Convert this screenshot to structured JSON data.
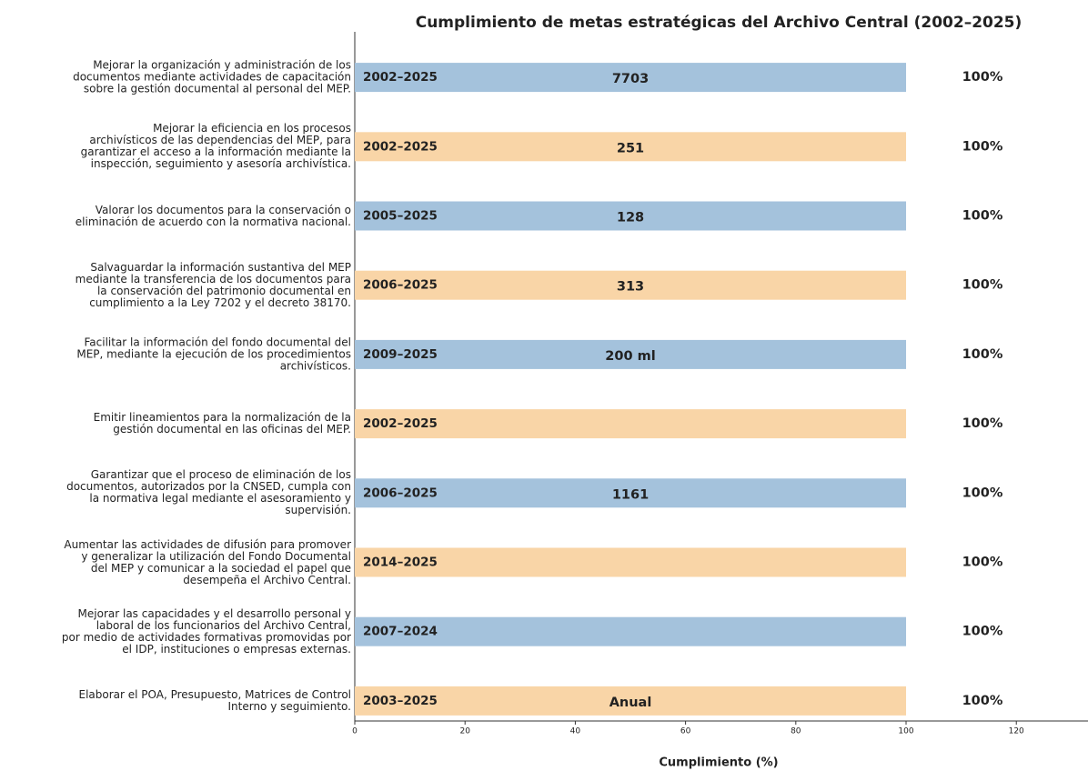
{
  "chart_data": {
    "type": "barh",
    "title": "Cumplimiento de metas estratégicas del Archivo Central (2002–2025)",
    "xlabel": "Cumplimiento (%)",
    "categories": [
      "Mejorar la organización y administración de los\ndocumentos mediante actividades de capacitación\nsobre la gestión documental al personal del MEP.",
      "Mejorar la eficiencia en los procesos\narchivísticos de las dependencias del MEP, para\ngarantizar el acceso a la información mediante la\ninspección, seguimiento y asesoría archivística.",
      "Valorar los documentos para la conservación o\neliminación de acuerdo con la normativa nacional.",
      "Salvaguardar la información sustantiva del MEP\nmediante la transferencia de los documentos para\nla conservación del patrimonio documental en\ncumplimiento a la Ley 7202 y el decreto 38170.",
      "Facilitar la información del fondo documental del\nMEP, mediante la ejecución de los procedimientos\narchivísticos.",
      "Emitir lineamientos para la normalización de la\ngestión documental en las oficinas del MEP.",
      "Garantizar que el proceso de eliminación de los\ndocumentos, autorizados por la CNSED, cumpla con\nla normativa legal mediante el asesoramiento y\nsupervisión.",
      "Aumentar las actividades de difusión para promover\ny generalizar la utilización del Fondo Documental\ndel MEP y comunicar a la sociedad el papel que\ndesempeña el Archivo Central.",
      "Mejorar las capacidades y el desarrollo personal y\nlaboral de los funcionarios del Archivo Central,\npor medio de actividades formativas promovidas por\nel IDP, instituciones o empresas externas.",
      "Elaborar el POA, Presupuesto, Matrices de Control\nInterno y seguimiento."
    ],
    "values": [
      100,
      100,
      100,
      100,
      100,
      100,
      100,
      100,
      100,
      100
    ],
    "value_labels": [
      "100%",
      "100%",
      "100%",
      "100%",
      "100%",
      "100%",
      "100%",
      "100%",
      "100%",
      "100%"
    ],
    "periods": [
      "2002–2025",
      "2002–2025",
      "2005–2025",
      "2006–2025",
      "2009–2025",
      "2002–2025",
      "2006–2025",
      "2014–2025",
      "2007–2024",
      "2003–2025"
    ],
    "annotations": [
      "7703",
      "251",
      "128",
      "313",
      "200 ml",
      null,
      "1161",
      null,
      null,
      "Anual"
    ],
    "colors": [
      "#a4c2dc",
      "#f9d5a7",
      "#a4c2dc",
      "#f9d5a7",
      "#a4c2dc",
      "#f9d5a7",
      "#a4c2dc",
      "#f9d5a7",
      "#a4c2dc",
      "#f9d5a7"
    ],
    "xlim": [
      0,
      133
    ],
    "xticks": [
      0,
      20,
      40,
      60,
      80,
      100,
      120
    ]
  }
}
